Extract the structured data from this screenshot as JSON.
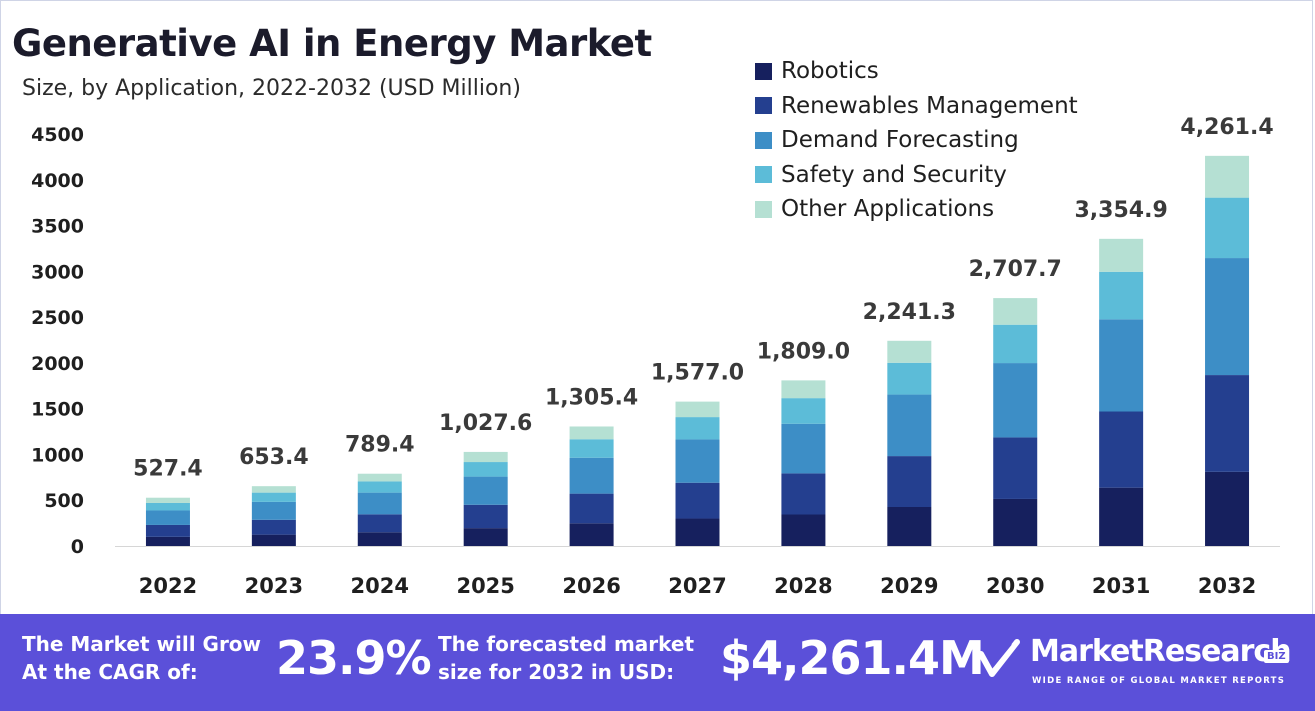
{
  "chart_data": {
    "type": "stacked-bar",
    "title": "Generative AI in Energy Market",
    "subtitle": "Size, by Application, 2022-2032 (USD Million)",
    "categories": [
      "2022",
      "2023",
      "2024",
      "2025",
      "2026",
      "2027",
      "2028",
      "2029",
      "2030",
      "2031",
      "2032"
    ],
    "totals": [
      527.4,
      653.4,
      789.4,
      1027.6,
      1305.4,
      1577.0,
      1809.0,
      2241.3,
      2707.7,
      3354.9,
      4261.4
    ],
    "total_labels": [
      "527.4",
      "653.4",
      "789.4",
      "1,027.6",
      "1,305.4",
      "1,577.0",
      "1,809.0",
      "2,241.3",
      "2,707.7",
      "3,354.9",
      "4,261.4"
    ],
    "series": [
      {
        "name": "Robotics",
        "color": "#16205e",
        "values": [
          100,
          124,
          150,
          195,
          248,
          300,
          344,
          426,
          514,
          637,
          810
        ]
      },
      {
        "name": "Renewables Management",
        "color": "#243f8f",
        "values": [
          130,
          162,
          196,
          255,
          324,
          391,
          449,
          556,
          672,
          832,
          1057
        ]
      },
      {
        "name": "Demand Forecasting",
        "color": "#3d8ec6",
        "values": [
          158,
          196,
          237,
          308,
          392,
          473,
          542,
          672,
          812,
          1007,
          1278
        ]
      },
      {
        "name": "Safety and Security",
        "color": "#5cbcd8",
        "values": [
          82,
          101,
          122,
          159,
          202,
          244,
          280,
          347,
          419,
          519,
          660
        ]
      },
      {
        "name": "Other Applications",
        "color": "#b5e0d3",
        "values": [
          57.4,
          70.4,
          84.4,
          110.6,
          139.4,
          169.0,
          194.0,
          240.3,
          290.7,
          359.9,
          456.4
        ]
      }
    ],
    "yticks": [
      0,
      500,
      1000,
      1500,
      2000,
      2500,
      3000,
      3500,
      4000,
      4500
    ],
    "ylim": [
      0,
      4500
    ],
    "legend_position": "top-right"
  },
  "footer": {
    "cagr_line1": "The Market will Grow",
    "cagr_line2": "At the CAGR of:",
    "cagr_value": "23.9%",
    "forecast_line1": "The forecasted market",
    "forecast_line2": "size for 2032 in USD:",
    "forecast_value": "$4,261.4M",
    "brand": "MarketResearch",
    "brand_badge": "BIZ",
    "tagline": "WIDE RANGE OF GLOBAL MARKET REPORTS"
  }
}
